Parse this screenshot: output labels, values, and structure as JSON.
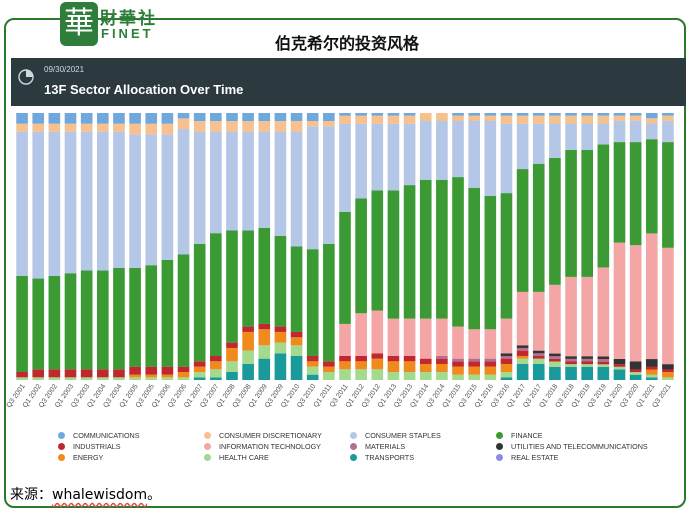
{
  "header": {
    "logo_cn": "財華社",
    "logo_en": "FINET",
    "logo_mark": "華",
    "headline": "伯克希尔的投资风格"
  },
  "banner": {
    "date": "09/30/2021",
    "title": "13F Sector Allocation Over Time",
    "icon": "pie-chart-icon"
  },
  "source": {
    "prefix": "来源：",
    "link": "whalewisdom",
    "suffix": "。"
  },
  "colors": {
    "COMMUNICATIONS": "#6fa8dc",
    "CONSUMER DISCRETIONARY": "#f6c08f",
    "CONSUMER STAPLES": "#b4c7e7",
    "FINANCE": "#3c9a34",
    "INDUSTRIALS": "#c0282d",
    "INFORMATION TECHNOLOGY": "#f4a6a6",
    "MATERIALS": "#b36f8f",
    "UTILITIES AND TELECOMMUNICATIONS": "#333333",
    "ENERGY": "#f08a1c",
    "HEALTH CARE": "#a3da8d",
    "TRANSPORTS": "#1a9a9a",
    "REAL ESTATE": "#8c8ce0"
  },
  "chart_data": {
    "type": "bar",
    "stacked": true,
    "normalized": true,
    "title": "13F Sector Allocation Over Time",
    "ylim": [
      0,
      100
    ],
    "categories": [
      "Q3 2001",
      "Q1 2002",
      "Q3 2002",
      "Q1 2003",
      "Q3 2003",
      "Q1 2004",
      "Q3 2004",
      "Q1 2005",
      "Q3 2005",
      "Q1 2006",
      "Q3 2006",
      "Q1 2007",
      "Q3 2007",
      "Q1 2008",
      "Q3 2008",
      "Q1 2009",
      "Q3 2009",
      "Q1 2010",
      "Q3 2010",
      "Q1 2011",
      "Q3 2011",
      "Q1 2012",
      "Q3 2012",
      "Q1 2013",
      "Q3 2013",
      "Q1 2014",
      "Q3 2014",
      "Q1 2015",
      "Q3 2015",
      "Q1 2016",
      "Q3 2016",
      "Q1 2017",
      "Q3 2017",
      "Q1 2018",
      "Q3 2018",
      "Q1 2019",
      "Q3 2019",
      "Q1 2020",
      "Q3 2020",
      "Q1 2021",
      "Q3 2021"
    ],
    "series": [
      {
        "name": "TRANSPORTS",
        "values": [
          0,
          0,
          0,
          0,
          0,
          0,
          0,
          0,
          0,
          0,
          0,
          1,
          1,
          3,
          6,
          8,
          10,
          9,
          2,
          0,
          0,
          0,
          0,
          0,
          0,
          0,
          0,
          0,
          0,
          0,
          1,
          6,
          6,
          5,
          5,
          5,
          5,
          4,
          2,
          1,
          0
        ]
      },
      {
        "name": "HEALTH CARE",
        "values": [
          1,
          1,
          1,
          1,
          1,
          1,
          1,
          1,
          1,
          1,
          1,
          2,
          3,
          4,
          5,
          5,
          4,
          4,
          3,
          3,
          4,
          4,
          4,
          3,
          3,
          3,
          3,
          2,
          2,
          2,
          2,
          2,
          2,
          2,
          1,
          1,
          1,
          1,
          1,
          1,
          1
        ]
      },
      {
        "name": "ENERGY",
        "values": [
          0,
          0,
          0,
          0,
          0,
          0,
          0,
          1,
          1,
          1,
          2,
          2,
          3,
          5,
          7,
          6,
          4,
          3,
          2,
          2,
          3,
          3,
          4,
          4,
          4,
          3,
          3,
          3,
          3,
          3,
          3,
          1,
          0,
          0,
          0,
          0,
          0,
          0,
          0,
          2,
          2
        ]
      },
      {
        "name": "INDUSTRIALS",
        "values": [
          2,
          3,
          3,
          3,
          3,
          3,
          3,
          3,
          3,
          3,
          2,
          2,
          2,
          2,
          2,
          2,
          2,
          2,
          2,
          2,
          2,
          2,
          2,
          2,
          2,
          2,
          2,
          2,
          2,
          2,
          2,
          2,
          1,
          1,
          1,
          1,
          1,
          1,
          1,
          1,
          1
        ]
      },
      {
        "name": "MATERIALS",
        "values": [
          0,
          0,
          0,
          0,
          0,
          0,
          0,
          0,
          0,
          0,
          0,
          0,
          0,
          0,
          0,
          0,
          0,
          0,
          0,
          0,
          0,
          0,
          0,
          0,
          0,
          0,
          1,
          1,
          1,
          1,
          1,
          1,
          1,
          1,
          1,
          1,
          1,
          0,
          0,
          0,
          0
        ]
      },
      {
        "name": "UTILITIES AND TELECOMMUNICATIONS",
        "values": [
          0,
          0,
          0,
          0,
          0,
          0,
          0,
          0,
          0,
          0,
          0,
          0,
          0,
          0,
          0,
          0,
          0,
          0,
          0,
          0,
          0,
          0,
          0,
          0,
          0,
          0,
          0,
          0,
          0,
          0,
          1,
          1,
          1,
          1,
          1,
          1,
          1,
          2,
          3,
          3,
          2
        ]
      },
      {
        "name": "REAL ESTATE",
        "values": [
          0,
          0,
          0,
          0,
          0,
          0,
          0,
          0,
          0,
          0,
          0,
          0,
          0,
          0,
          0,
          0,
          0,
          0,
          0,
          0,
          0,
          0,
          0,
          0,
          0,
          0,
          0,
          0,
          0,
          0,
          0,
          0,
          0,
          0,
          0,
          0,
          0,
          0,
          0,
          0,
          0
        ]
      },
      {
        "name": "INFORMATION TECHNOLOGY",
        "values": [
          0,
          0,
          0,
          0,
          0,
          0,
          0,
          0,
          0,
          0,
          0,
          0,
          0,
          0,
          0,
          0,
          0,
          0,
          0,
          0,
          12,
          16,
          16,
          14,
          14,
          15,
          14,
          12,
          11,
          11,
          13,
          20,
          22,
          26,
          30,
          30,
          34,
          44,
          44,
          48,
          44
        ]
      },
      {
        "name": "FINANCE",
        "values": [
          36,
          34,
          35,
          36,
          37,
          37,
          38,
          37,
          38,
          40,
          42,
          44,
          46,
          42,
          36,
          36,
          34,
          32,
          40,
          44,
          42,
          43,
          45,
          48,
          50,
          52,
          52,
          56,
          53,
          50,
          47,
          46,
          48,
          48,
          48,
          48,
          47,
          38,
          39,
          36,
          40
        ]
      },
      {
        "name": "CONSUMER STAPLES",
        "values": [
          54,
          55,
          54,
          53,
          52,
          52,
          51,
          50,
          49,
          47,
          47,
          42,
          38,
          37,
          37,
          36,
          39,
          43,
          46,
          44,
          33,
          28,
          25,
          25,
          23,
          22,
          22,
          21,
          25,
          28,
          26,
          17,
          15,
          13,
          10,
          10,
          8,
          8,
          8,
          6,
          8
        ]
      },
      {
        "name": "CONSUMER DISCRETIONARY",
        "values": [
          3,
          3,
          3,
          3,
          3,
          3,
          3,
          4,
          4,
          4,
          4,
          4,
          4,
          4,
          4,
          4,
          4,
          4,
          2,
          2,
          3,
          3,
          3,
          3,
          3,
          3,
          3,
          2,
          2,
          2,
          3,
          3,
          3,
          3,
          3,
          3,
          3,
          2,
          2,
          2,
          2
        ]
      },
      {
        "name": "COMMUNICATIONS",
        "values": [
          4,
          4,
          4,
          4,
          4,
          4,
          4,
          4,
          4,
          4,
          2,
          3,
          3,
          3,
          3,
          3,
          3,
          3,
          3,
          3,
          1,
          1,
          1,
          1,
          1,
          0,
          0,
          1,
          1,
          1,
          1,
          1,
          1,
          1,
          1,
          1,
          1,
          1,
          1,
          2,
          1
        ]
      }
    ]
  },
  "legend": [
    {
      "label": "COMMUNICATIONS",
      "color": "#6fa8dc"
    },
    {
      "label": "CONSUMER DISCRETIONARY",
      "color": "#f6c08f"
    },
    {
      "label": "CONSUMER STAPLES",
      "color": "#b4c7e7"
    },
    {
      "label": "FINANCE",
      "color": "#3c9a34"
    },
    {
      "label": "INDUSTRIALS",
      "color": "#c0282d"
    },
    {
      "label": "INFORMATION TECHNOLOGY",
      "color": "#f4a6a6"
    },
    {
      "label": "MATERIALS",
      "color": "#b36f8f"
    },
    {
      "label": "UTILITIES AND TELECOMMUNICATIONS",
      "color": "#333333"
    },
    {
      "label": "ENERGY",
      "color": "#f08a1c"
    },
    {
      "label": "HEALTH CARE",
      "color": "#a3da8d"
    },
    {
      "label": "TRANSPORTS",
      "color": "#1a9a9a"
    },
    {
      "label": "REAL ESTATE",
      "color": "#8c8ce0"
    }
  ]
}
